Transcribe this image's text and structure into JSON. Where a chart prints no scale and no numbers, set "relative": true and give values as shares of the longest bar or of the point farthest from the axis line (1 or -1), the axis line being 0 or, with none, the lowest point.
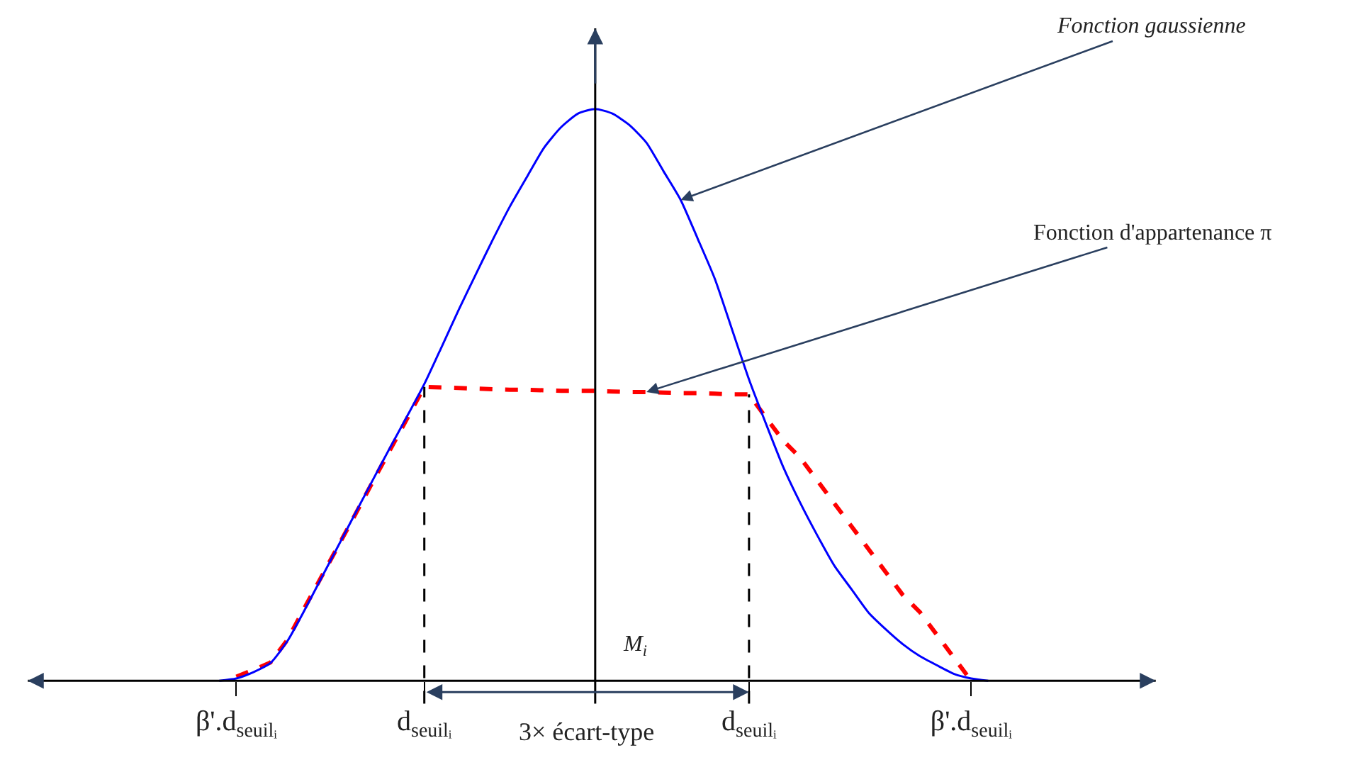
{
  "chart_data": {
    "type": "line",
    "relative": true,
    "categories": [
      null,
      "β'.d$_{seuilᵢ}$",
      null,
      null,
      null,
      null,
      null,
      null,
      null,
      null,
      null,
      null,
      "d$_{seuilᵢ}$",
      null,
      null,
      null,
      null,
      null,
      null,
      null,
      null,
      null,
      null,
      null,
      null,
      null,
      null,
      null,
      null,
      null,
      null,
      "d$_{seuilᵢ}$",
      null,
      null,
      null,
      null,
      null,
      null,
      null,
      null,
      null,
      null,
      null,
      null,
      "β'.d$_{seuilᵢ}$",
      null
    ],
    "series": [
      {
        "color": "#0000ff",
        "line_style": "solid",
        "values": [
          0,
          0.004,
          0.015,
          0.031,
          0.07,
          0.124,
          0.181,
          0.238,
          0.295,
          0.352,
          0.408,
          0.463,
          0.519,
          0.583,
          0.648,
          0.71,
          0.771,
          0.829,
          0.881,
          0.932,
          0.968,
          0.992,
          1,
          0.992,
          0.972,
          0.941,
          0.891,
          0.841,
          0.773,
          0.703,
          0.615,
          0.527,
          0.449,
          0.374,
          0.311,
          0.254,
          0.201,
          0.16,
          0.119,
          0.09,
          0.064,
          0.043,
          0.027,
          0.012,
          0.004,
          0
        ]
      },
      {
        "color": "#ff0000",
        "line_style": "dashed",
        "values": [
          null,
          0.007,
          0.019,
          0.032,
          0.072,
          0.128,
          0.183,
          0.238,
          0.293,
          0.349,
          0.404,
          0.459,
          0.514,
          0.513,
          0.512,
          0.511,
          0.51,
          0.509,
          0.509,
          0.508,
          0.507,
          0.507,
          0.507,
          0.506,
          0.505,
          0.505,
          0.504,
          0.503,
          0.503,
          0.502,
          0.501,
          0.501,
          0.46,
          0.42,
          0.39,
          0.35,
          0.31,
          0.27,
          0.23,
          0.19,
          0.15,
          0.12,
          0.08,
          0.04,
          0,
          null
        ]
      }
    ],
    "annotations": [
      "Fonction gaussienne",
      "Fonction d'appartenance π",
      "M$_{i}$",
      "3× écart-type"
    ]
  }
}
